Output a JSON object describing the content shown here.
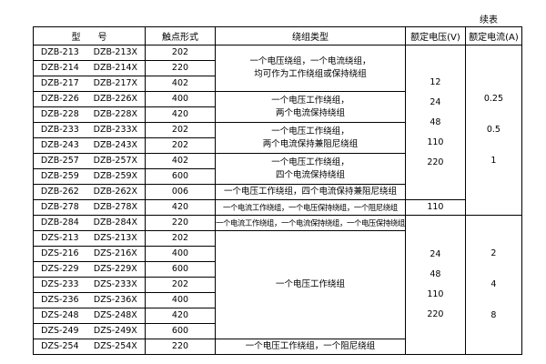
{
  "note": "续表",
  "table": {
    "header": [
      "型      号",
      "触点形式",
      "绕组类型",
      "额定电压(V)",
      "额定电流(A)"
    ],
    "rows": [
      [
        "DZB-213",
        "DZB-213X",
        "202"
      ],
      [
        "DZB-214",
        "DZB-214X",
        "220"
      ],
      [
        "DZB-217",
        "DZB-217X",
        "402"
      ],
      [
        "DZB-226",
        "DZB-226X",
        "400"
      ],
      [
        "DZB-228",
        "DZB-228X",
        "420"
      ],
      [
        "DZB-233",
        "DZB-233X",
        "202"
      ],
      [
        "DZB-243",
        "DZB-243X",
        "202"
      ],
      [
        "DZB-257",
        "DZB-257X",
        "402"
      ],
      [
        "DZB-259",
        "DZB-259X",
        "600"
      ],
      [
        "DZB-262",
        "DZB-262X",
        "006"
      ],
      [
        "DZB-278",
        "DZB-278X",
        "420"
      ],
      [
        "DZB-284",
        "DZB-284X",
        "220"
      ],
      [
        "DZS-213",
        "DZS-213X",
        "202"
      ],
      [
        "DZS-216",
        "DZS-216X",
        "400"
      ],
      [
        "DZS-229",
        "DZS-229X",
        "600"
      ],
      [
        "DZS-233",
        "DZS-233X",
        "202"
      ],
      [
        "DZS-236",
        "DZS-236X",
        "400"
      ],
      [
        "DZS-248",
        "DZS-248X",
        "420"
      ],
      [
        "DZS-249",
        "DZS-249X",
        "600"
      ],
      [
        "DZS-254",
        "DZS-254X",
        "220"
      ]
    ],
    "coil_types": [
      [
        "一个电压绕组，一个电流绕组，",
        "均可作为工作绕组或保持绕组"
      ],
      [
        "一个电压工作绕组，",
        "两个电流保持绕组"
      ],
      [
        "一个电压工作绕组，",
        "两个电流保持兼阻尼绕组"
      ],
      [
        "一个电压工作绕组，",
        "四个电流保持绕组"
      ],
      [
        "一个电压工作绕组，四个电流保持兼阻尼绕组"
      ],
      [
        "一个电流工作绕组，一个电压保持绕组，一个阻尼绕组"
      ],
      [
        "一个电流工作绕组，一个电流保持绕组，一个电压保持绕组"
      ],
      [
        "一个电压工作绕组"
      ],
      [
        "一个电压工作绕组，一个阻尼绕组"
      ]
    ],
    "voltages": [
      [
        "12",
        "24",
        "48",
        "110",
        "220"
      ],
      [
        "110"
      ],
      [
        "24",
        "48",
        "110",
        "220"
      ]
    ],
    "currents": [
      [
        "0.25",
        "0.5",
        "1"
      ],
      [
        "2",
        "4",
        "8"
      ]
    ]
  }
}
